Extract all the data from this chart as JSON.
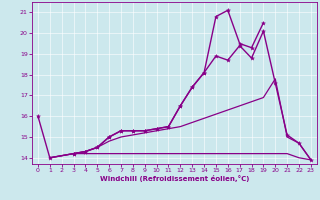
{
  "xlabel": "Windchill (Refroidissement éolien,°C)",
  "bg_color": "#cce8ed",
  "line_color": "#880088",
  "grid_color": "#aacccc",
  "xlim": [
    -0.5,
    23.5
  ],
  "ylim": [
    13.7,
    21.5
  ],
  "xticks": [
    0,
    1,
    2,
    3,
    4,
    5,
    6,
    7,
    8,
    9,
    10,
    11,
    12,
    13,
    14,
    15,
    16,
    17,
    18,
    19,
    20,
    21,
    22,
    23
  ],
  "yticks": [
    14,
    15,
    16,
    17,
    18,
    19,
    20,
    21
  ],
  "lines": [
    {
      "x": [
        0,
        1,
        3,
        4,
        5,
        6,
        7,
        8,
        9,
        10,
        11,
        12,
        13,
        14,
        15,
        16,
        17,
        18,
        19,
        20,
        21,
        22,
        23
      ],
      "y": [
        16.0,
        14.0,
        14.2,
        14.3,
        14.5,
        15.0,
        15.3,
        15.3,
        15.3,
        15.4,
        15.5,
        16.5,
        17.4,
        18.1,
        18.9,
        18.7,
        19.4,
        18.8,
        20.1,
        17.6,
        15.1,
        14.7,
        13.9
      ],
      "marker": true,
      "lw": 1.0
    },
    {
      "x": [
        3,
        4,
        5,
        6,
        7,
        8,
        9,
        10,
        11,
        12,
        13,
        14,
        15,
        16,
        17,
        18,
        19
      ],
      "y": [
        14.2,
        14.3,
        14.5,
        15.0,
        15.3,
        15.3,
        15.3,
        15.4,
        15.5,
        16.5,
        17.4,
        18.1,
        20.8,
        21.1,
        19.5,
        19.3,
        20.5
      ],
      "marker": true,
      "lw": 1.0
    },
    {
      "x": [
        1,
        3,
        4,
        5,
        6,
        7,
        8,
        9,
        10,
        11,
        12,
        13,
        14,
        15,
        16,
        17,
        18,
        19,
        20,
        21,
        22,
        23
      ],
      "y": [
        14.0,
        14.2,
        14.3,
        14.5,
        14.8,
        15.0,
        15.1,
        15.2,
        15.3,
        15.4,
        15.5,
        15.7,
        15.9,
        16.1,
        16.3,
        16.5,
        16.7,
        16.9,
        17.8,
        15.0,
        14.7,
        13.9
      ],
      "marker": false,
      "lw": 0.9
    },
    {
      "x": [
        1,
        3,
        4,
        5,
        6,
        7,
        8,
        9,
        10,
        11,
        12,
        13,
        14,
        15,
        16,
        17,
        18,
        19,
        20,
        21,
        22,
        23
      ],
      "y": [
        14.0,
        14.2,
        14.2,
        14.2,
        14.2,
        14.2,
        14.2,
        14.2,
        14.2,
        14.2,
        14.2,
        14.2,
        14.2,
        14.2,
        14.2,
        14.2,
        14.2,
        14.2,
        14.2,
        14.2,
        14.0,
        13.9
      ],
      "marker": false,
      "lw": 0.9
    }
  ]
}
